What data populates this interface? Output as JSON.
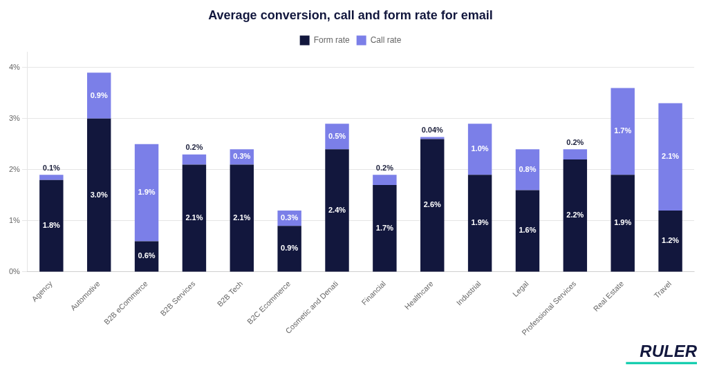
{
  "chart_data": {
    "type": "bar",
    "title": "Average conversion, call and form rate for email",
    "categories": [
      "Agency",
      "Automotive",
      "B2B eCommerce",
      "B2B Services",
      "B2B Tech",
      "B2C Ecommerce",
      "Cosmetic and Denati",
      "Financial",
      "Healthcare",
      "Industrial",
      "Legal",
      "Professional Services",
      "Real Estate",
      "Travel"
    ],
    "series": [
      {
        "name": "Form rate",
        "color": "#12173d",
        "values": [
          1.8,
          3.0,
          0.6,
          2.1,
          2.1,
          0.9,
          2.4,
          1.7,
          2.6,
          1.9,
          1.6,
          2.2,
          1.9,
          1.2
        ],
        "value_labels": [
          "1.8%",
          "3.0%",
          "0.6%",
          "2.1%",
          "2.1%",
          "0.9%",
          "2.4%",
          "1.7%",
          "2.6%",
          "1.9%",
          "1.6%",
          "2.2%",
          "1.9%",
          "1.2%"
        ]
      },
      {
        "name": "Call rate",
        "color": "#7b7fe8",
        "values": [
          0.1,
          0.9,
          1.9,
          0.2,
          0.3,
          0.3,
          0.5,
          0.2,
          0.04,
          1.0,
          0.8,
          0.2,
          1.7,
          2.1
        ],
        "value_labels": [
          "0.1%",
          "0.9%",
          "1.9%",
          "0.2%",
          "0.3%",
          "0.3%",
          "0.5%",
          "0.2%",
          "0.04%",
          "1.0%",
          "0.8%",
          "0.2%",
          "1.7%",
          "2.1%"
        ]
      }
    ],
    "stacked": true,
    "data_labels": true,
    "ylim": [
      0,
      4.3
    ],
    "yticks": [
      {
        "value": 0,
        "label": "0%"
      },
      {
        "value": 1,
        "label": "1%"
      },
      {
        "value": 2,
        "label": "2%"
      },
      {
        "value": 3,
        "label": "3%"
      },
      {
        "value": 4,
        "label": "4%"
      }
    ],
    "grid": true,
    "legend": "top",
    "annotations": [
      {
        "text": "RULER",
        "color": "#12173d"
      }
    ]
  }
}
